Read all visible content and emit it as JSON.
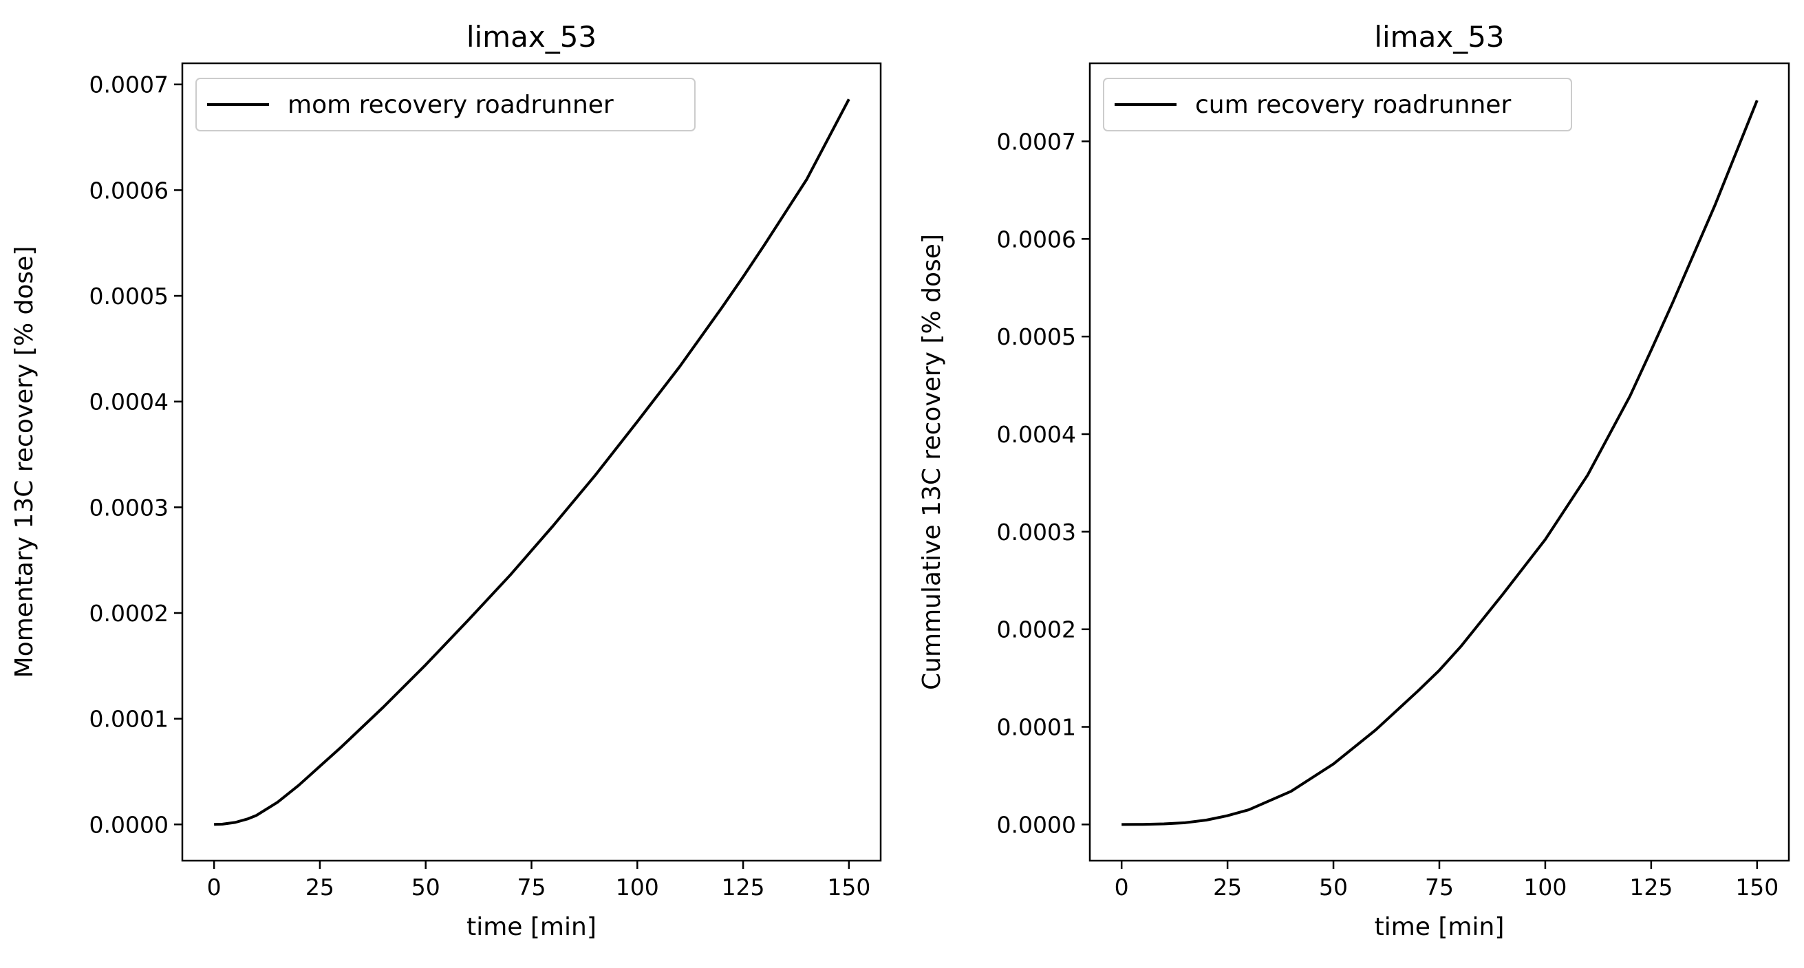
{
  "chart_data": [
    {
      "type": "line",
      "title": "limax_53",
      "xlabel": "time [min]",
      "ylabel": "Momentary 13C recovery [% dose]",
      "xlim": [
        -7.5,
        157.5
      ],
      "ylim": [
        -3.43e-05,
        0.00072
      ],
      "xticks": [
        0,
        25,
        50,
        75,
        100,
        125,
        150
      ],
      "xtick_labels": [
        "0",
        "25",
        "50",
        "75",
        "100",
        "125",
        "150"
      ],
      "yticks": [
        0,
        0.0001,
        0.0002,
        0.0003,
        0.0004,
        0.0005,
        0.0006,
        0.0007
      ],
      "ytick_labels": [
        "0.0000",
        "0.0001",
        "0.0002",
        "0.0003",
        "0.0004",
        "0.0005",
        "0.0006",
        "0.0007"
      ],
      "grid": false,
      "legend_position": "upper-left",
      "series": [
        {
          "name": "mom recovery roadrunner",
          "color": "#000000",
          "x": [
            0,
            2,
            5,
            8,
            10,
            15,
            20,
            25,
            30,
            40,
            50,
            60,
            70,
            75,
            80,
            90,
            100,
            110,
            120,
            125,
            130,
            140,
            150
          ],
          "values": [
            0,
            3e-07,
            1.9e-06,
            5.3e-06,
            8.5e-06,
            2.1e-05,
            3.7e-05,
            5.5e-05,
            7.3e-05,
            0.000111,
            0.000151,
            0.000193,
            0.000236,
            0.000259,
            0.000282,
            0.00033,
            0.000381,
            0.000433,
            0.000489,
            0.000518,
            0.000548,
            0.00061,
            0.000686
          ]
        }
      ]
    },
    {
      "type": "line",
      "title": "limax_53",
      "xlabel": "time [min]",
      "ylabel": "Cummulative 13C recovery [% dose]",
      "xlim": [
        -7.5,
        157.5
      ],
      "ylim": [
        -3.71e-05,
        0.00078
      ],
      "xticks": [
        0,
        25,
        50,
        75,
        100,
        125,
        150
      ],
      "xtick_labels": [
        "0",
        "25",
        "50",
        "75",
        "100",
        "125",
        "150"
      ],
      "yticks": [
        0,
        0.0001,
        0.0002,
        0.0003,
        0.0004,
        0.0005,
        0.0006,
        0.0007
      ],
      "ytick_labels": [
        "0.0000",
        "0.0001",
        "0.0002",
        "0.0003",
        "0.0004",
        "0.0005",
        "0.0006",
        "0.0007"
      ],
      "grid": false,
      "legend_position": "upper-left",
      "series": [
        {
          "name": "cum recovery roadrunner",
          "color": "#000000",
          "x": [
            0,
            5,
            10,
            15,
            20,
            25,
            30,
            40,
            50,
            60,
            70,
            75,
            80,
            90,
            100,
            110,
            120,
            125,
            130,
            140,
            150
          ],
          "values": [
            0,
            1e-07,
            6e-07,
            1.8e-06,
            4.5e-06,
            9e-06,
            1.5e-05,
            3.4e-05,
            6.2e-05,
            9.7e-05,
            0.000137,
            0.000158,
            0.000182,
            0.000236,
            0.000292,
            0.000358,
            0.000439,
            0.000486,
            0.000534,
            0.000634,
            0.000742
          ]
        }
      ]
    }
  ]
}
